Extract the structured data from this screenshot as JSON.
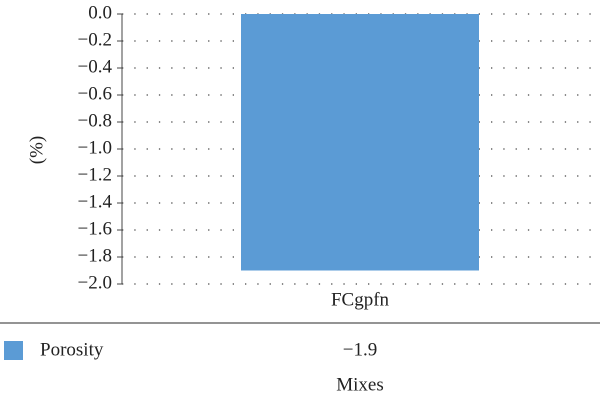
{
  "chart_data": {
    "type": "bar",
    "y_label": "(%)",
    "x_label": "Mixes",
    "categories": [
      "FCgpfn"
    ],
    "series": [
      {
        "name": "Porosity",
        "color": "#5b9bd5",
        "values": [
          -1.9
        ],
        "value_labels": [
          "−1.9"
        ]
      }
    ],
    "ylim": [
      -2.0,
      0.0
    ],
    "yticks": [
      {
        "value": 0.0,
        "label": "0.0"
      },
      {
        "value": -0.2,
        "label": "−0.2"
      },
      {
        "value": -0.4,
        "label": "−0.4"
      },
      {
        "value": -0.6,
        "label": "−0.6"
      },
      {
        "value": -0.8,
        "label": "−0.8"
      },
      {
        "value": -1.0,
        "label": "−1.0"
      },
      {
        "value": -1.2,
        "label": "−1.2"
      },
      {
        "value": -1.4,
        "label": "−1.4"
      },
      {
        "value": -1.6,
        "label": "−1.6"
      },
      {
        "value": -1.8,
        "label": "−1.8"
      },
      {
        "value": -2.0,
        "label": "−2.0"
      }
    ],
    "grid": true
  }
}
